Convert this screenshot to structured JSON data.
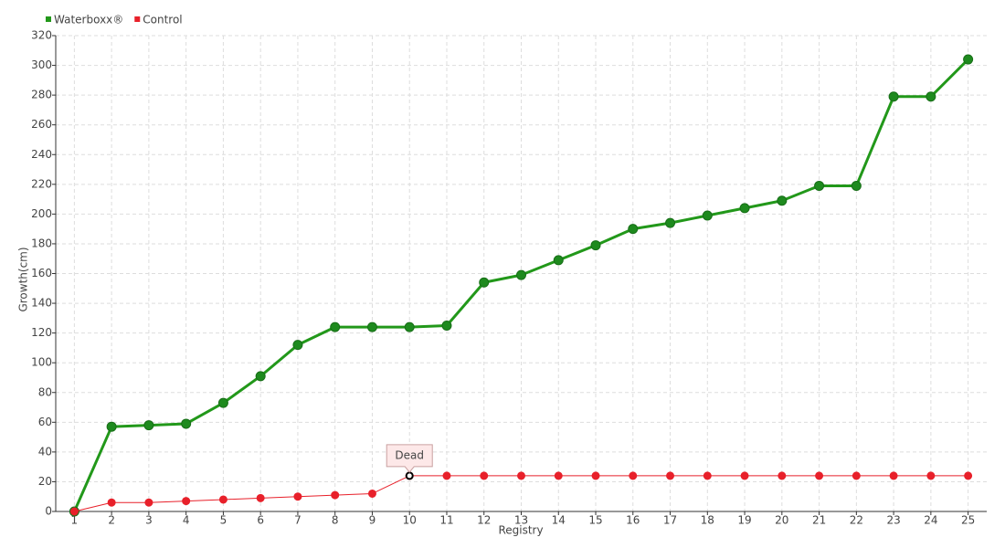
{
  "chart_data": {
    "type": "line",
    "x_label": "Registry",
    "y_label": "Growth(cm)",
    "categories": [
      "1",
      "2",
      "3",
      "4",
      "5",
      "6",
      "7",
      "8",
      "9",
      "10",
      "11",
      "12",
      "13",
      "14",
      "15",
      "16",
      "17",
      "18",
      "19",
      "20",
      "21",
      "22",
      "23",
      "24",
      "25"
    ],
    "series": [
      {
        "name": "Waterboxx®",
        "color": "#22981a",
        "marker_color": "#1e8a1e",
        "line_width": 3,
        "values": [
          0,
          57,
          58,
          59,
          73,
          91,
          112,
          124,
          124,
          124,
          125,
          154,
          159,
          169,
          179,
          190,
          194,
          199,
          204,
          209,
          219,
          219,
          279,
          279,
          304
        ]
      },
      {
        "name": "Control",
        "color": "#e8202a",
        "marker_color": "#e8202a",
        "line_width": 1,
        "values": [
          0,
          6,
          6,
          7,
          8,
          9,
          10,
          11,
          12,
          24,
          24,
          24,
          24,
          24,
          24,
          24,
          24,
          24,
          24,
          24,
          24,
          24,
          24,
          24,
          24
        ]
      }
    ],
    "annotations": [
      {
        "text": "Dead",
        "category": "10",
        "series": "Control"
      }
    ],
    "ylim": [
      0,
      320
    ],
    "yticks": [
      0,
      20,
      40,
      60,
      80,
      100,
      120,
      140,
      160,
      180,
      200,
      220,
      240,
      260,
      280,
      300,
      320
    ],
    "grid": true,
    "legend": "top-left"
  }
}
